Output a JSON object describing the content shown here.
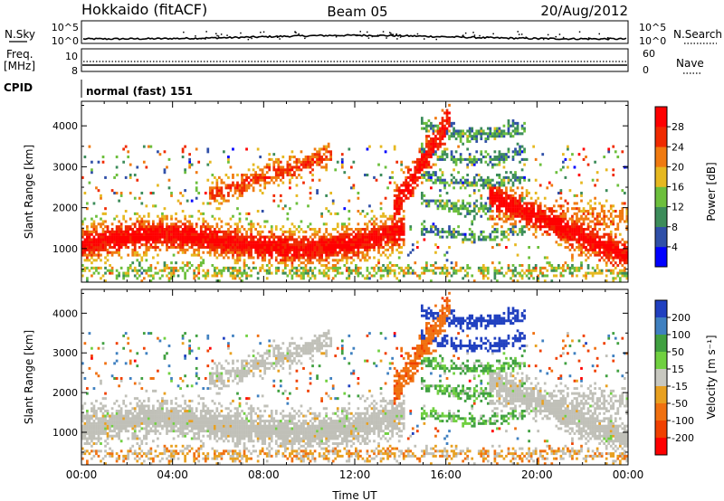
{
  "header": {
    "station": "Hokkaido (fitACF)",
    "beam": "Beam 05",
    "date": "20/Aug/2012"
  },
  "top_panels": {
    "nsky_label": "N.Sky",
    "nsearch_label": "N.Search",
    "nsky_ticks": [
      "10^5",
      "10^0"
    ],
    "nsearch_ticks": [
      "10^5",
      "10^0"
    ],
    "freq_label_1": "Freq.",
    "freq_label_2": "[MHz]",
    "freq_ticks": [
      "10",
      "8"
    ],
    "nave_label": "Nave",
    "nave_ticks": [
      "60",
      "0"
    ],
    "cpid_label": "CPID",
    "cpid_text": "normal (fast) 151"
  },
  "colors": {
    "power": [
      "#0000ff",
      "#2f4fa8",
      "#3c8c5a",
      "#6cbf3c",
      "#e6b820",
      "#f07a10",
      "#f02a00",
      "#ff0000"
    ],
    "velocity": [
      "#2040c0",
      "#3f80c0",
      "#40a040",
      "#70d040",
      "#c8c8c0",
      "#e8a020",
      "#f07010",
      "#f04000",
      "#ff0000"
    ],
    "ground_scatter": "#c0c0b8"
  },
  "chart_data": [
    {
      "type": "heatmap",
      "name": "power",
      "ylabel": "Slant Range [km]",
      "yticks": [
        1000,
        2000,
        3000,
        4000
      ],
      "ylim": [
        180,
        4600
      ],
      "xlim": [
        0,
        24
      ],
      "colorbar_label": "Power [dB]",
      "colorbar_ticks": [
        4,
        8,
        12,
        16,
        20,
        24,
        28
      ],
      "colorbar_range": [
        0,
        32
      ]
    },
    {
      "type": "heatmap",
      "name": "velocity",
      "ylabel": "Slant Range [km]",
      "yticks": [
        1000,
        2000,
        3000,
        4000
      ],
      "ylim": [
        180,
        4600
      ],
      "xlim": [
        0,
        24
      ],
      "colorbar_label": "Velocity [m s⁻¹]",
      "colorbar_ticks": [
        "200",
        "100",
        "50",
        "15",
        "-15",
        "-50",
        "-100",
        "-200"
      ],
      "xlabel": "Time UT",
      "xticks": [
        "00:00",
        "04:00",
        "08:00",
        "12:00",
        "16:00",
        "20:00",
        "00:00"
      ]
    }
  ]
}
